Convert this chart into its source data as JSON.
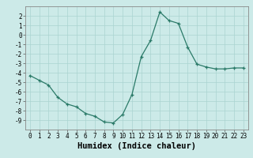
{
  "x": [
    0,
    1,
    2,
    3,
    4,
    5,
    6,
    7,
    8,
    9,
    10,
    11,
    12,
    13,
    14,
    15,
    16,
    17,
    18,
    19,
    20,
    21,
    22,
    23
  ],
  "y": [
    -4.3,
    -4.8,
    -5.3,
    -6.6,
    -7.3,
    -7.6,
    -8.3,
    -8.6,
    -9.2,
    -9.3,
    -8.4,
    -6.3,
    -2.3,
    -0.6,
    2.4,
    1.5,
    1.2,
    -1.3,
    -3.1,
    -3.4,
    -3.6,
    -3.6,
    -3.5,
    -3.5
  ],
  "line_color": "#2a7a68",
  "marker": "+",
  "bg_color": "#cceae8",
  "grid_color": "#aad4d0",
  "xlabel": "Humidex (Indice chaleur)",
  "ylim": [
    -10,
    3
  ],
  "xlim": [
    -0.5,
    23.5
  ],
  "yticks": [
    2,
    1,
    0,
    -1,
    -2,
    -3,
    -4,
    -5,
    -6,
    -7,
    -8,
    -9
  ],
  "xticks": [
    0,
    1,
    2,
    3,
    4,
    5,
    6,
    7,
    8,
    9,
    10,
    11,
    12,
    13,
    14,
    15,
    16,
    17,
    18,
    19,
    20,
    21,
    22,
    23
  ],
  "tick_fontsize": 5.5,
  "xlabel_fontsize": 7.5
}
